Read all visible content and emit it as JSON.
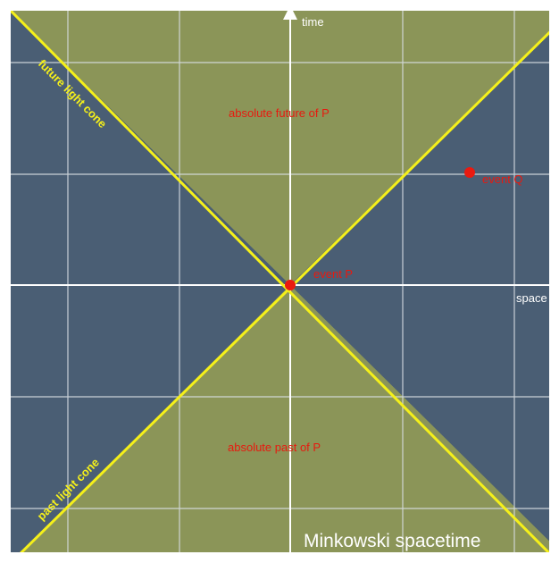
{
  "colors": {
    "background": "#4a5e74",
    "cone_fill": "#8b9558",
    "grid": "#d7dde2",
    "light_cone": "#f5f01a",
    "event": "#ea1a10",
    "frame": "#ffffff"
  },
  "labels": {
    "time_axis": "time",
    "space_axis": "space",
    "future_region": "absolute future of P",
    "past_region": "absolute past of P",
    "future_cone": "future light cone",
    "past_cone": "past light cone",
    "event_p": "event P",
    "event_q": "event Q",
    "title": "Minkowski spacetime"
  }
}
